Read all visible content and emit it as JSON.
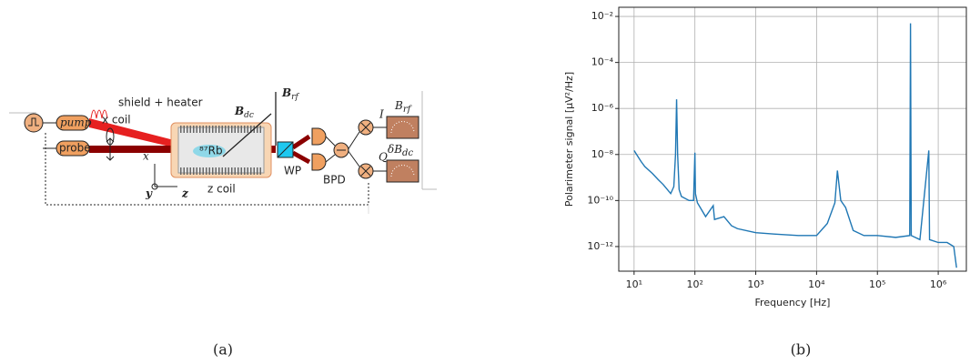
{
  "diagram": {
    "shield": "shield + heater",
    "bdc": {
      "main": "B",
      "sub": "dc"
    },
    "brf": {
      "main": "B",
      "sub": "rf"
    },
    "xcoil": "x coil",
    "pump": "pump",
    "probe": "probe",
    "rb": "⁸⁷Rb",
    "axis_x": "x",
    "axis_y": "y",
    "axis_z": "z",
    "zcoil": "z coil",
    "wp": "WP",
    "bpd": "BPD",
    "i": "I",
    "q": "Q",
    "out_brf": {
      "main": "B",
      "sub": "rf"
    },
    "out_dbdc": {
      "main": "δB",
      "sub": "dc"
    }
  },
  "captions": [
    "(a)",
    "(b)"
  ],
  "chart_data": {
    "type": "line",
    "xlabel": "Frequency [Hz]",
    "ylabel": "Polarimeter signal [μV²/Hz]",
    "log_x": true,
    "log_y": true,
    "grid": true,
    "color": "#1f77b4",
    "xlim": [
      5.6,
      2900000
    ],
    "ylim": [
      8.5e-14,
      0.025
    ],
    "xticks": [
      {
        "value": 10,
        "label": "10¹"
      },
      {
        "value": 100,
        "label": "10²"
      },
      {
        "value": 1000,
        "label": "10³"
      },
      {
        "value": 10000,
        "label": "10⁴"
      },
      {
        "value": 100000,
        "label": "10⁵"
      },
      {
        "value": 1000000,
        "label": "10⁶"
      }
    ],
    "yticks": [
      {
        "value": 1e-12,
        "label": "10⁻¹²"
      },
      {
        "value": 1e-10,
        "label": "10⁻¹⁰"
      },
      {
        "value": 1e-08,
        "label": "10⁻⁸"
      },
      {
        "value": 1e-06,
        "label": "10⁻⁶"
      },
      {
        "value": 0.0001,
        "label": "10⁻⁴"
      },
      {
        "value": 0.01,
        "label": "10⁻²"
      }
    ],
    "x": [
      10,
      11,
      13,
      15,
      20,
      25,
      30,
      40,
      45,
      48,
      50,
      52,
      55,
      60,
      80,
      95,
      100,
      102,
      110,
      150,
      200,
      210,
      300,
      400,
      500,
      1000,
      2000,
      5000,
      10000,
      15000,
      20000,
      22000,
      25000,
      30000,
      40000,
      60000,
      100000,
      200000,
      340000,
      350000,
      360000,
      500000,
      700000,
      720000,
      1000000,
      1400000,
      1800000,
      2000000
    ],
    "values": [
      1.5e-08,
      1e-08,
      5e-09,
      3e-09,
      1.5e-09,
      8e-10,
      5e-10,
      2e-10,
      4e-10,
      1e-08,
      2.5e-06,
      1e-08,
      3e-10,
      1.5e-10,
      1e-10,
      1e-10,
      1.2e-08,
      2e-10,
      8e-11,
      2e-11,
      6e-11,
      1.5e-11,
      2e-11,
      8e-12,
      6e-12,
      4e-12,
      3.5e-12,
      3e-12,
      3e-12,
      1e-11,
      8e-11,
      2e-09,
      1e-10,
      5e-11,
      5e-12,
      3e-12,
      3e-12,
      2.5e-12,
      3e-12,
      0.005,
      3e-12,
      2e-12,
      1.5e-08,
      2e-12,
      1.5e-12,
      1.5e-12,
      1e-12,
      1.2e-13
    ]
  }
}
